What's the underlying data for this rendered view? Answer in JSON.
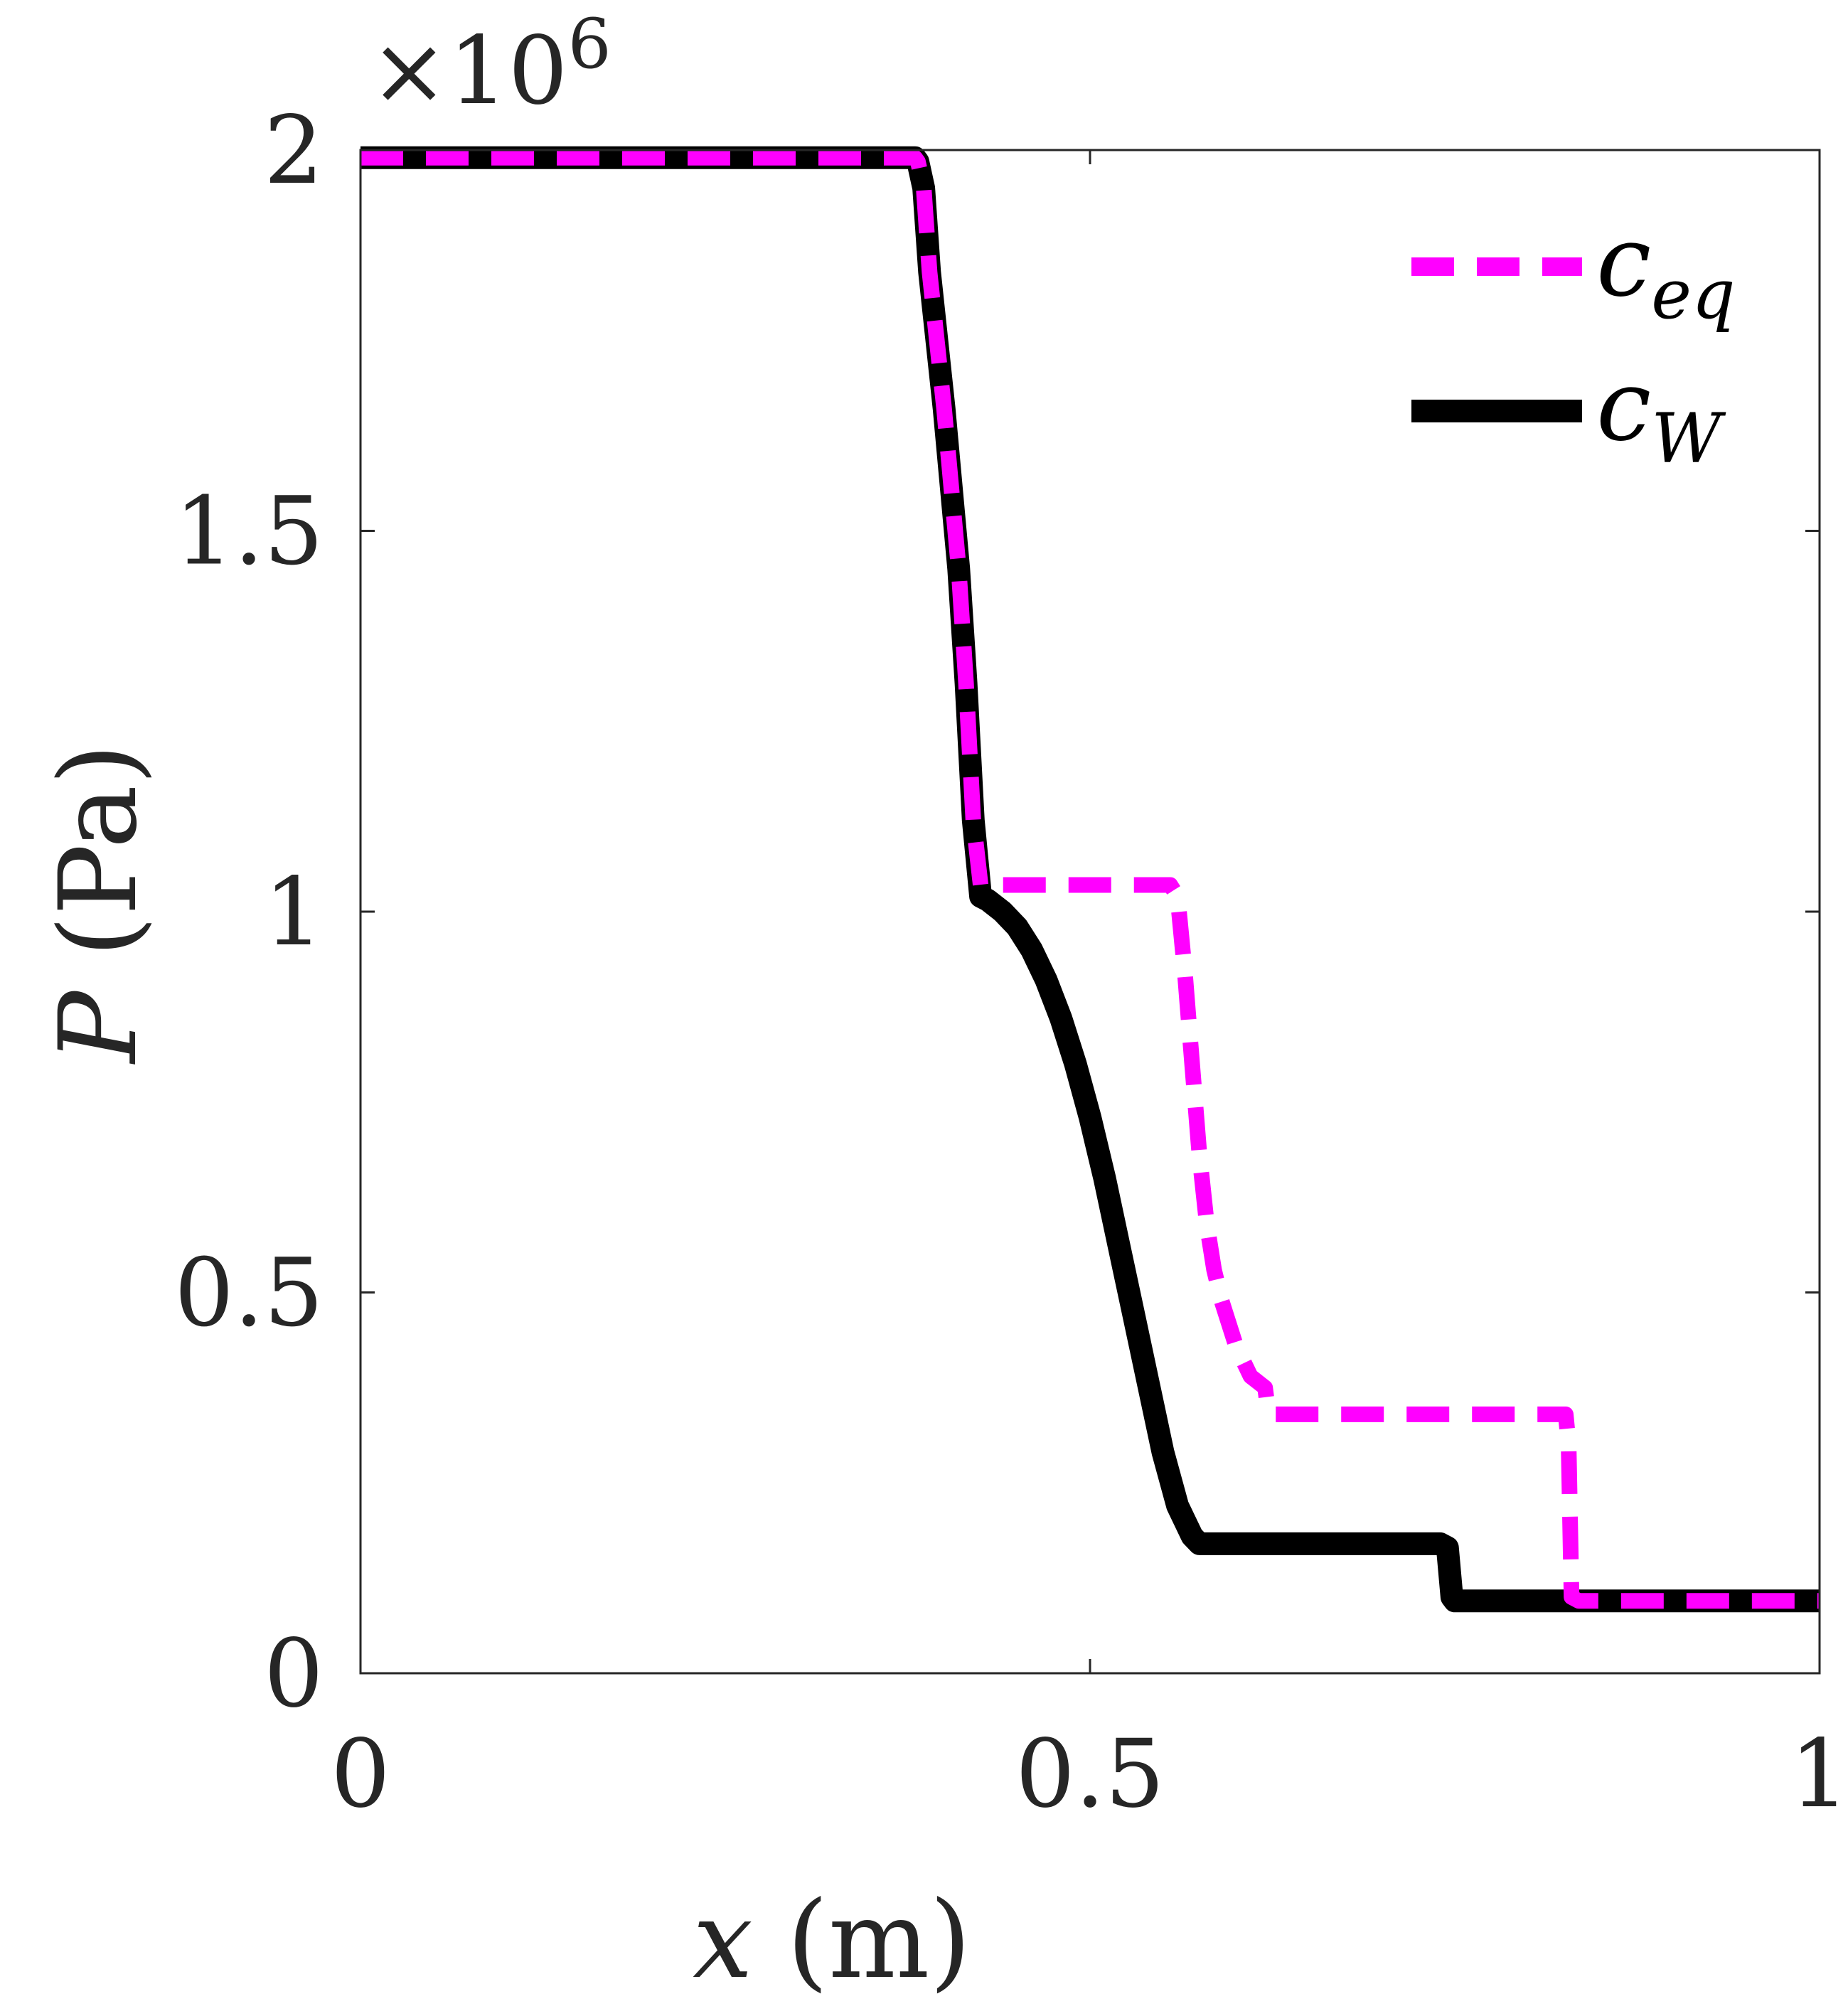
{
  "chart_data": {
    "type": "line",
    "xlabel": {
      "var": "x",
      "unit": "(m)"
    },
    "ylabel": {
      "var": "P",
      "unit": "(Pa)"
    },
    "xlim": [
      0,
      1
    ],
    "ylim": [
      0,
      2000000
    ],
    "y_exponent_label": "×10",
    "y_exponent_power": "6",
    "x_ticks": [
      0,
      0.5,
      1
    ],
    "x_tick_labels": [
      "0",
      "0.5",
      "1"
    ],
    "y_ticks": [
      0,
      500000,
      1000000,
      1500000,
      2000000
    ],
    "y_tick_labels": [
      "0",
      "0.5",
      "1",
      "1.5",
      "2"
    ],
    "grid": false,
    "legend_position": "top-right",
    "series": [
      {
        "name": "c_W",
        "legend_base": "c",
        "legend_sub": "W",
        "color": "#000000",
        "style": "solid",
        "x": [
          0,
          0.38,
          0.382,
          0.386,
          0.39,
          0.4,
          0.41,
          0.415,
          0.42,
          0.425,
          0.43,
          0.44,
          0.45,
          0.46,
          0.47,
          0.48,
          0.49,
          0.5,
          0.51,
          0.52,
          0.53,
          0.54,
          0.55,
          0.56,
          0.57,
          0.575,
          0.578,
          0.58,
          0.6,
          0.65,
          0.7,
          0.74,
          0.745,
          0.748,
          0.75,
          0.76,
          0.8,
          0.9,
          1.0
        ],
        "y": [
          1990000,
          1990000,
          1985000,
          1950000,
          1840000,
          1660000,
          1450000,
          1300000,
          1120000,
          1020000,
          1015000,
          1000000,
          980000,
          950000,
          910000,
          860000,
          800000,
          730000,
          650000,
          560000,
          470000,
          380000,
          290000,
          220000,
          180000,
          170000,
          170000,
          170000,
          170000,
          170000,
          170000,
          170000,
          165000,
          100000,
          95000,
          95000,
          95000,
          95000,
          95000
        ]
      },
      {
        "name": "c_eq",
        "legend_base": "c",
        "legend_sub": "eq",
        "color": "#ff00ff",
        "style": "dashed",
        "x": [
          0,
          0.38,
          0.382,
          0.386,
          0.39,
          0.4,
          0.41,
          0.415,
          0.42,
          0.425,
          0.43,
          0.5,
          0.555,
          0.56,
          0.565,
          0.57,
          0.575,
          0.58,
          0.585,
          0.59,
          0.6,
          0.61,
          0.62,
          0.622,
          0.625,
          0.7,
          0.8,
          0.826,
          0.828,
          0.83,
          0.835,
          0.9,
          1.0
        ],
        "y": [
          1990000,
          1990000,
          1985000,
          1950000,
          1840000,
          1660000,
          1450000,
          1300000,
          1120000,
          1035000,
          1035000,
          1035000,
          1035000,
          1020000,
          920000,
          800000,
          680000,
          590000,
          530000,
          490000,
          430000,
          390000,
          375000,
          345000,
          340000,
          340000,
          340000,
          340000,
          300000,
          100000,
          95000,
          95000,
          95000
        ]
      }
    ]
  }
}
